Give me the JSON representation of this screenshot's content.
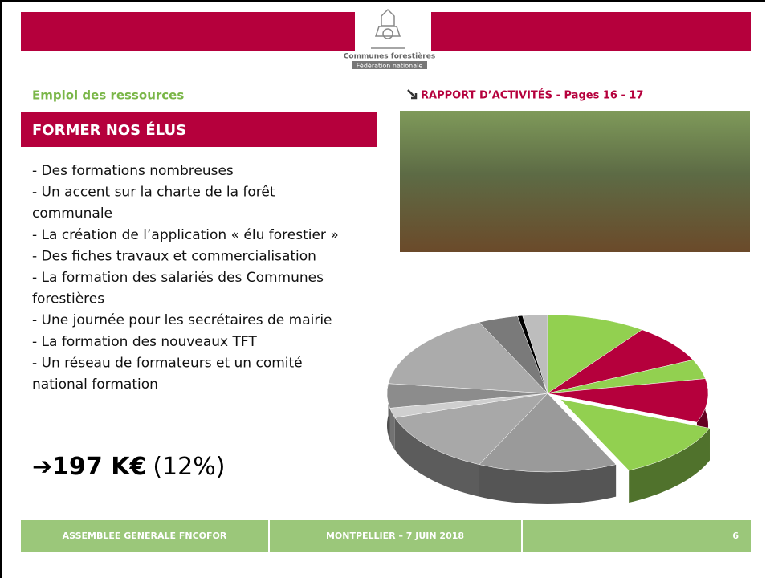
{
  "header": {
    "logo_name": "Communes forestières",
    "logo_sub": "Fédération nationale"
  },
  "section": "Emploi des ressources",
  "report_link": "RAPPORT D’ACTIVITÉS - Pages 16 - 17",
  "title": "FORMER NOS ÉLUS",
  "bullets": [
    "- Des formations nombreuses",
    "- Un accent sur la charte de la forêt",
    "communale",
    "- La création de l’application « élu forestier »",
    "- Des fiches travaux et commercialisation",
    "- La formation des salariés des Communes",
    "forestières",
    "- Une journée pour les secrétaires de mairie",
    "- La formation des nouveaux TFT",
    "- Un réseau de formateurs et un comité",
    "national formation"
  ],
  "total": {
    "amount": "197 K€",
    "share": "(12%)"
  },
  "chart_data": {
    "type": "pie",
    "three_d": true,
    "exploded": [
      4
    ],
    "values": [
      10,
      8,
      4,
      9,
      12,
      14,
      13,
      2,
      5,
      16,
      4,
      0.5,
      2.5
    ],
    "colors": [
      "#92d050",
      "#b5003c",
      "#92d050",
      "#b5003c",
      "#92d050",
      "#9a9a9a",
      "#a8a8a8",
      "#cfcfcf",
      "#8c8c8c",
      "#ababab",
      "#7a7a7a",
      "#000000",
      "#bdbdbd"
    ]
  },
  "footer": [
    "ASSEMBLEE GENERALE FNCOFOR",
    "MONTPELLIER – 7 JUIN 2018",
    "6"
  ]
}
